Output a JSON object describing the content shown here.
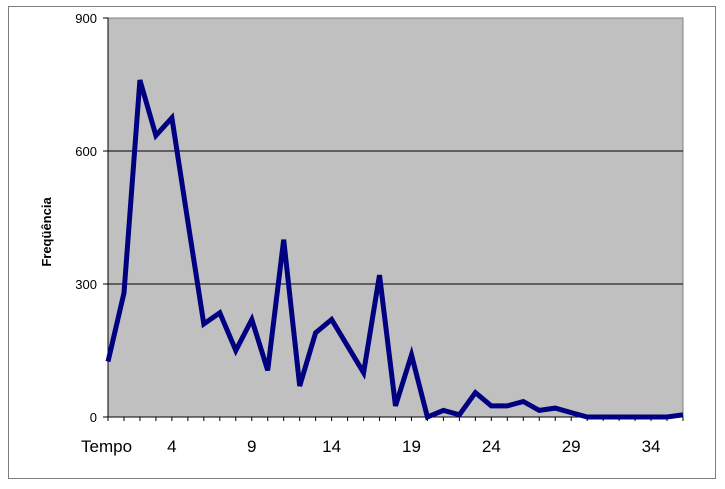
{
  "chart_data": {
    "type": "line",
    "title": "",
    "xlabel": "Tempo",
    "ylabel": "Freqüência",
    "ylim": [
      0,
      900
    ],
    "xlim": [
      0,
      36
    ],
    "y_ticks": [
      "0",
      "300",
      "600",
      "900"
    ],
    "x_ticks": [
      "4",
      "9",
      "14",
      "19",
      "24",
      "29",
      "34"
    ],
    "grid": true,
    "legend": "none",
    "colors": {
      "line": "#000080",
      "plot_bg": "#c0c0c0",
      "grid": "#000000"
    },
    "series": [
      {
        "x": [
          0,
          1,
          2,
          3,
          4,
          5,
          6,
          7,
          8,
          9,
          10,
          11,
          12,
          13,
          14,
          15,
          16,
          17,
          18,
          19,
          20,
          21,
          22,
          23,
          24,
          25,
          26,
          27,
          28,
          29,
          30,
          31,
          32,
          33,
          34,
          35,
          36
        ],
        "values": [
          125,
          280,
          760,
          635,
          675,
          440,
          210,
          235,
          150,
          220,
          105,
          400,
          70,
          190,
          220,
          160,
          100,
          320,
          25,
          140,
          0,
          15,
          5,
          55,
          25,
          25,
          35,
          15,
          20,
          10,
          0,
          0,
          0,
          0,
          0,
          0,
          5
        ]
      }
    ]
  }
}
